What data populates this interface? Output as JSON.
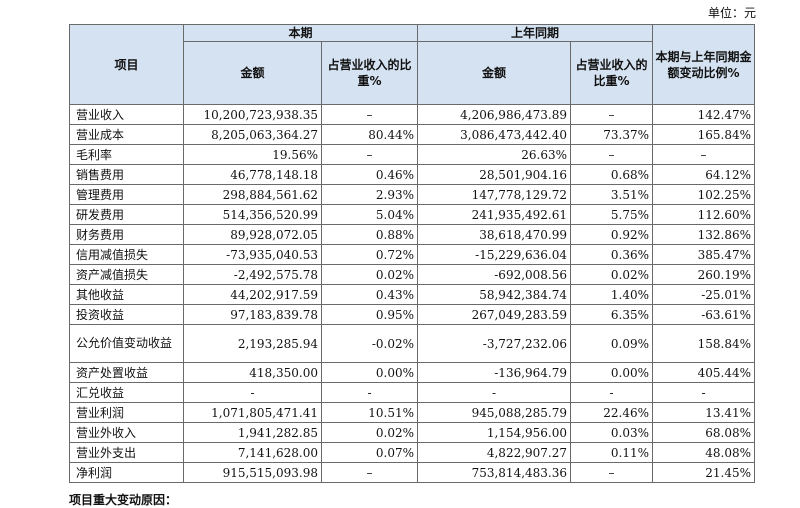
{
  "unit_label": "单位：元",
  "header": {
    "item": "项目",
    "current_period": "本期",
    "prior_period": "上年同期",
    "change": "本期与上年同期金额变动比例%",
    "amount": "金额",
    "ratio": "占营业收入的比重%"
  },
  "rows": [
    {
      "name": "营业收入",
      "cur_amount": "10,200,723,938.35",
      "cur_ratio": "–",
      "prev_amount": "4,206,986,473.89",
      "prev_ratio": "–",
      "change": "142.47%"
    },
    {
      "name": "营业成本",
      "cur_amount": "8,205,063,364.27",
      "cur_ratio": "80.44%",
      "prev_amount": "3,086,473,442.40",
      "prev_ratio": "73.37%",
      "change": "165.84%"
    },
    {
      "name": "毛利率",
      "cur_amount": "19.56%",
      "cur_ratio": "–",
      "prev_amount": "26.63%",
      "prev_ratio": "–",
      "change": "–"
    },
    {
      "name": "销售费用",
      "cur_amount": "46,778,148.18",
      "cur_ratio": "0.46%",
      "prev_amount": "28,501,904.16",
      "prev_ratio": "0.68%",
      "change": "64.12%"
    },
    {
      "name": "管理费用",
      "cur_amount": "298,884,561.62",
      "cur_ratio": "2.93%",
      "prev_amount": "147,778,129.72",
      "prev_ratio": "3.51%",
      "change": "102.25%"
    },
    {
      "name": "研发费用",
      "cur_amount": "514,356,520.99",
      "cur_ratio": "5.04%",
      "prev_amount": "241,935,492.61",
      "prev_ratio": "5.75%",
      "change": "112.60%"
    },
    {
      "name": "财务费用",
      "cur_amount": "89,928,072.05",
      "cur_ratio": "0.88%",
      "prev_amount": "38,618,470.99",
      "prev_ratio": "0.92%",
      "change": "132.86%"
    },
    {
      "name": "信用减值损失",
      "cur_amount": "-73,935,040.53",
      "cur_ratio": "0.72%",
      "prev_amount": "-15,229,636.04",
      "prev_ratio": "0.36%",
      "change": "385.47%"
    },
    {
      "name": "资产减值损失",
      "cur_amount": "-2,492,575.78",
      "cur_ratio": "0.02%",
      "prev_amount": "-692,008.56",
      "prev_ratio": "0.02%",
      "change": "260.19%"
    },
    {
      "name": "其他收益",
      "cur_amount": "44,202,917.59",
      "cur_ratio": "0.43%",
      "prev_amount": "58,942,384.74",
      "prev_ratio": "1.40%",
      "change": "-25.01%"
    },
    {
      "name": "投资收益",
      "cur_amount": "97,183,839.78",
      "cur_ratio": "0.95%",
      "prev_amount": "267,049,283.59",
      "prev_ratio": "6.35%",
      "change": "-63.61%"
    },
    {
      "name": "公允价值变动收益",
      "cur_amount": "2,193,285.94",
      "cur_ratio": "-0.02%",
      "prev_amount": "-3,727,232.06",
      "prev_ratio": "0.09%",
      "change": "158.84%"
    },
    {
      "name": "资产处置收益",
      "cur_amount": "418,350.00",
      "cur_ratio": "0.00%",
      "prev_amount": "-136,964.79",
      "prev_ratio": "0.00%",
      "change": "405.44%"
    },
    {
      "name": "汇兑收益",
      "cur_amount": "-",
      "cur_ratio": "-",
      "prev_amount": "-",
      "prev_ratio": "-",
      "change": "-"
    },
    {
      "name": "营业利润",
      "cur_amount": "1,071,805,471.41",
      "cur_ratio": "10.51%",
      "prev_amount": "945,088,285.79",
      "prev_ratio": "22.46%",
      "change": "13.41%"
    },
    {
      "name": "营业外收入",
      "cur_amount": "1,941,282.85",
      "cur_ratio": "0.02%",
      "prev_amount": "1,154,956.00",
      "prev_ratio": "0.03%",
      "change": "68.08%"
    },
    {
      "name": "营业外支出",
      "cur_amount": "7,141,628.00",
      "cur_ratio": "0.07%",
      "prev_amount": "4,822,907.27",
      "prev_ratio": "0.11%",
      "change": "48.08%"
    },
    {
      "name": "净利润",
      "cur_amount": "915,515,093.98",
      "cur_ratio": "–",
      "prev_amount": "753,814,483.36",
      "prev_ratio": "–",
      "change": "21.45%"
    }
  ],
  "footer_text": "项目重大变动原因："
}
